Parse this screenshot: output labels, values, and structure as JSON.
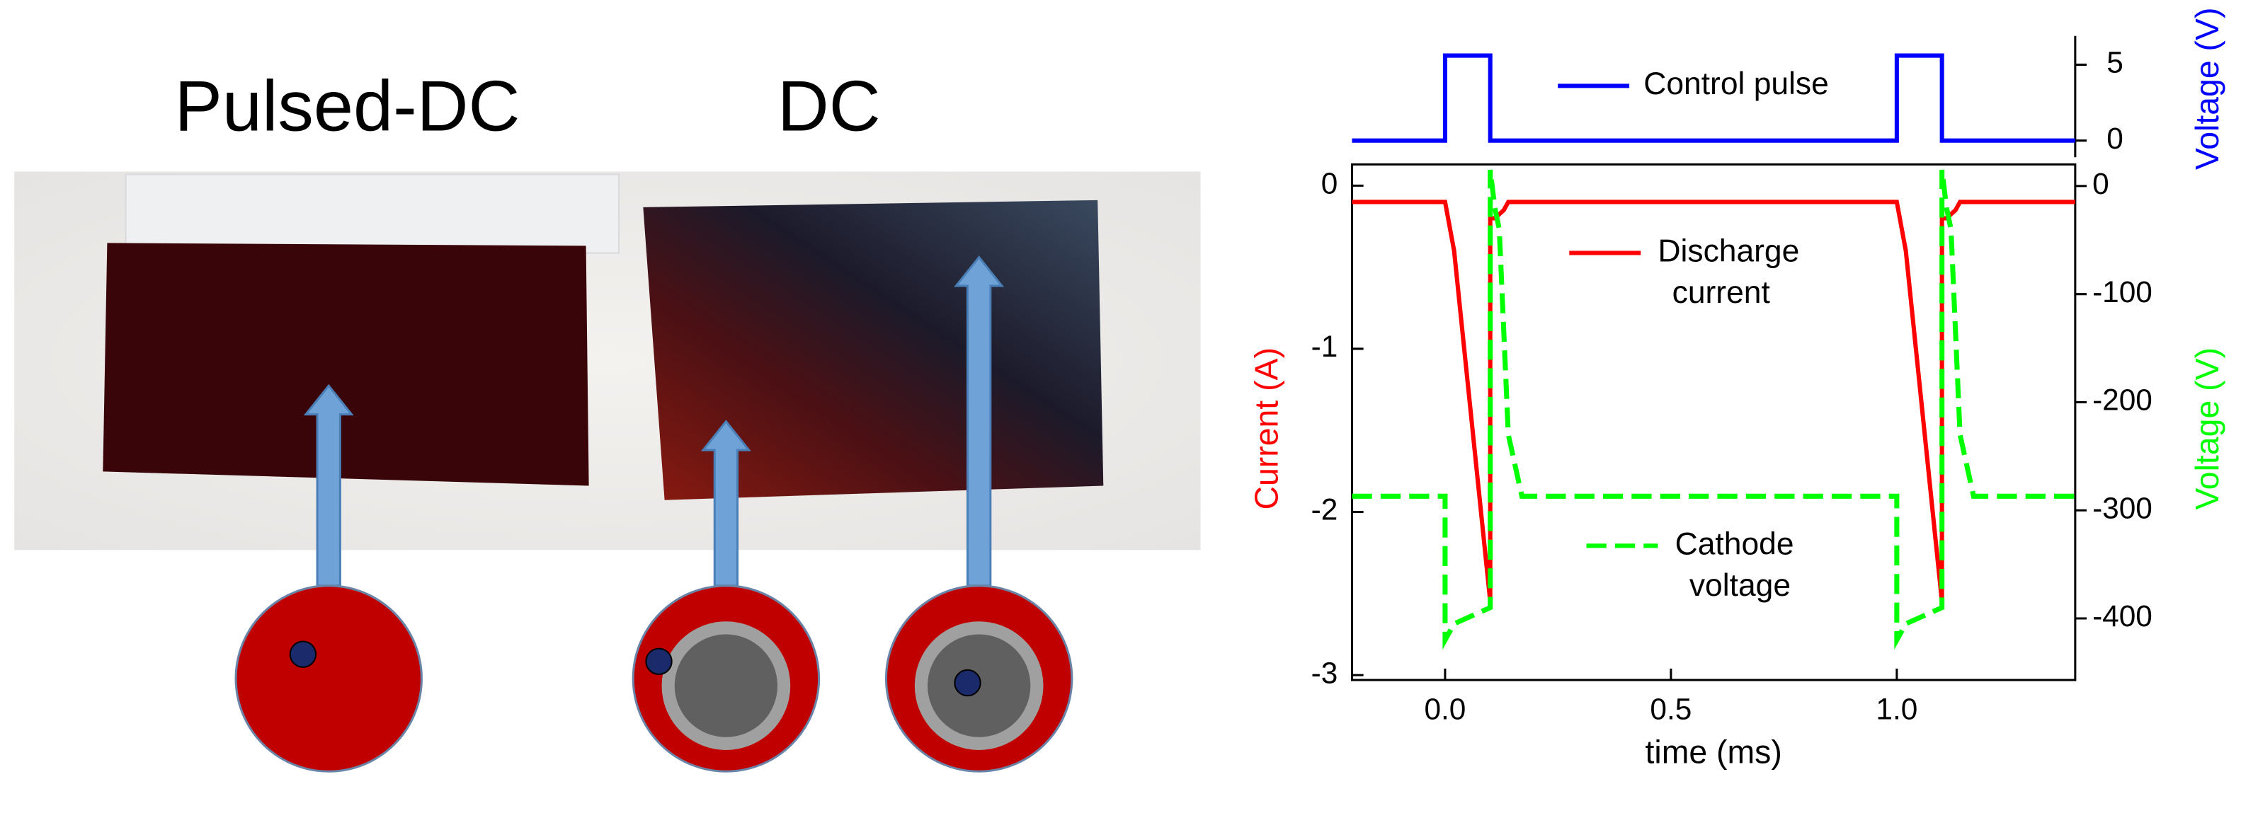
{
  "photo": {
    "labels": [
      "Pulsed-DC",
      "DC"
    ]
  },
  "chart_data": {
    "type": "line",
    "xlabel": "time (ms)",
    "ylabel": "Current (A)",
    "y2label": "Voltage (V)",
    "y3label": "Voltage (V)",
    "xlim": [
      -0.206,
      1.395
    ],
    "xticks": [
      {
        "value": 0,
        "label": "0.0"
      },
      {
        "value": 0.5,
        "label": "0.5"
      },
      {
        "value": 1,
        "label": "1.0"
      }
    ],
    "ylim": [
      -3.03,
      0.13
    ],
    "yticks": [
      0,
      -1,
      -2,
      -3
    ],
    "y2lim": [
      -457,
      20
    ],
    "y2ticks": [
      0,
      -100,
      -200,
      -300,
      -400
    ],
    "y3lim": [
      -1.1,
      6.9
    ],
    "y3ticks": [
      5,
      0
    ],
    "series": [
      {
        "name": "Control pulse",
        "color": "#0000ff",
        "axis": "y3",
        "x": [
          -0.206,
          0,
          0,
          0.1,
          0.1,
          1.0,
          1.0,
          1.1,
          1.1,
          1.395
        ],
        "values": [
          0,
          0,
          5.6,
          5.6,
          0,
          0,
          5.6,
          5.6,
          0,
          0
        ]
      },
      {
        "name": "Discharge current",
        "color": "#ff0000",
        "axis": "y",
        "x": [
          -0.206,
          0,
          0.02,
          0.1,
          0.1,
          0.11,
          0.13,
          0.14,
          1.0,
          1.02,
          1.1,
          1.1,
          1.11,
          1.13,
          1.14,
          1.395
        ],
        "values": [
          -0.1,
          -0.1,
          -0.4,
          -2.55,
          -0.2,
          -0.2,
          -0.15,
          -0.1,
          -0.1,
          -0.4,
          -2.55,
          -0.2,
          -0.2,
          -0.15,
          -0.1,
          -0.1
        ]
      },
      {
        "name": "Cathode voltage",
        "color": "#00ff00",
        "axis": "y2",
        "dash": true,
        "x": [
          -0.206,
          0,
          0,
          0.02,
          0.1,
          0.1,
          0.11,
          0.12,
          0.14,
          0.17,
          1.0,
          1.0,
          1.02,
          1.1,
          1.1,
          1.11,
          1.12,
          1.14,
          1.17,
          1.395
        ],
        "values": [
          -287,
          -287,
          -420,
          -405,
          -390,
          15,
          -20,
          -40,
          -230,
          -287,
          -287,
          -420,
          -405,
          -390,
          15,
          -20,
          -40,
          -230,
          -287,
          -287
        ]
      }
    ]
  }
}
